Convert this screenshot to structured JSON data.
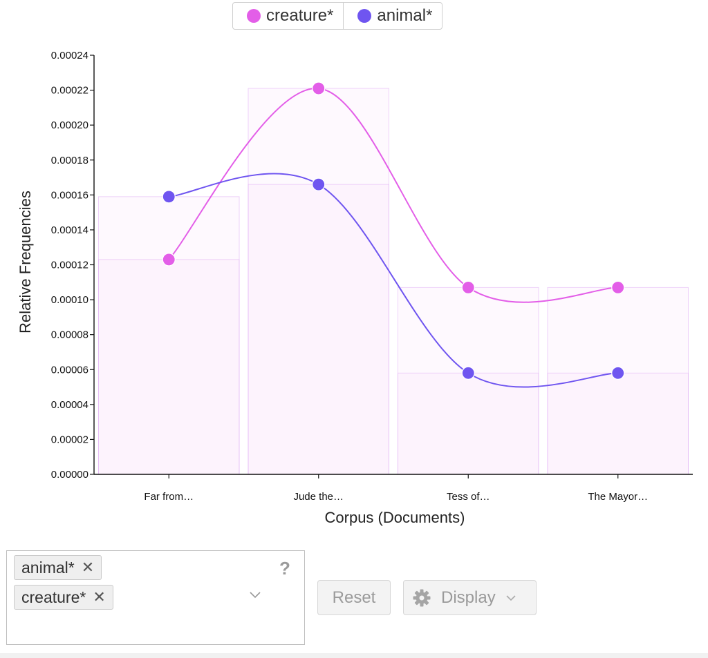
{
  "legend": [
    {
      "label": "creature*",
      "color": "#e35ee8"
    },
    {
      "label": "animal*",
      "color": "#6f55f0"
    }
  ],
  "chart_data": {
    "type": "line",
    "xlabel": "Corpus (Documents)",
    "ylabel": "Relative Frequencies",
    "categories": [
      "Far from…",
      "Jude the…",
      "Tess of…",
      "The Mayor…"
    ],
    "ylim": [
      0,
      0.00024
    ],
    "yticks": [
      "0.00000",
      "0.00002",
      "0.00004",
      "0.00006",
      "0.00008",
      "0.00010",
      "0.00012",
      "0.00014",
      "0.00016",
      "0.00018",
      "0.00020",
      "0.00022",
      "0.00024"
    ],
    "series": [
      {
        "name": "creature*",
        "color": "#e35ee8",
        "values": [
          0.000123,
          0.000221,
          0.000107,
          0.000107
        ]
      },
      {
        "name": "animal*",
        "color": "#6f55f0",
        "values": [
          0.000159,
          0.000166,
          5.8e-05,
          5.8e-05
        ]
      }
    ],
    "bars": "background bars per document matching each series value",
    "grid": false
  },
  "controls": {
    "terms": [
      "animal*",
      "creature*"
    ],
    "tag_remove_symbol": "✕",
    "help_symbol": "?",
    "reset_label": "Reset",
    "display_label": "Display"
  }
}
